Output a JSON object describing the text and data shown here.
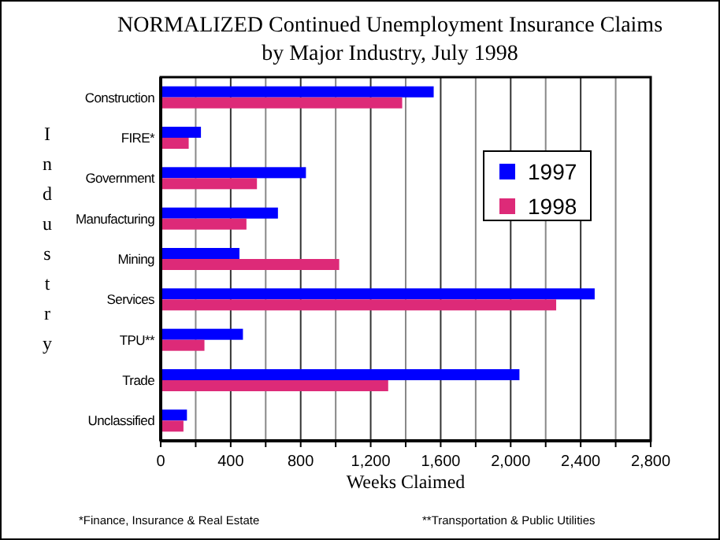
{
  "chart_data": {
    "type": "bar",
    "orientation": "horizontal",
    "title": "NORMALIZED Continued Unemployment Insurance Claims",
    "subtitle": "by Major Industry, July 1998",
    "xlabel": "Weeks Claimed",
    "ylabel": "Industry",
    "categories": [
      "Construction",
      "FIRE*",
      "Government",
      "Manufacturing",
      "Mining",
      "Services",
      "TPU**",
      "Trade",
      "Unclassified"
    ],
    "series": [
      {
        "name": "1997",
        "color": "#0000ff",
        "values": [
          1560,
          230,
          830,
          670,
          450,
          2480,
          470,
          2050,
          150
        ]
      },
      {
        "name": "1998",
        "color": "#dd2a78",
        "values": [
          1380,
          160,
          550,
          490,
          1020,
          2260,
          250,
          1300,
          130
        ]
      }
    ],
    "xlim": [
      0,
      2800
    ],
    "xticks": [
      0,
      {
        "value": 200,
        "label": null
      },
      {
        "value": 400,
        "label": "400"
      },
      {
        "value": 600,
        "label": null
      },
      {
        "value": 800,
        "label": "800"
      },
      {
        "value": 1000,
        "label": null
      },
      {
        "value": 1200,
        "label": "1,200"
      },
      {
        "value": 1400,
        "label": null
      },
      {
        "value": 1600,
        "label": "1,600"
      },
      {
        "value": 1800,
        "label": null
      },
      {
        "value": 2000,
        "label": "2,000"
      },
      {
        "value": 2200,
        "label": null
      },
      {
        "value": 2400,
        "label": "2,400"
      },
      {
        "value": 2600,
        "label": null
      },
      {
        "value": 2800,
        "label": "2,800"
      }
    ],
    "grid": "x",
    "legend": "right",
    "annotations": [
      "*Finance, Insurance & Real Estate",
      "**Transportation & Public Utilities"
    ]
  }
}
